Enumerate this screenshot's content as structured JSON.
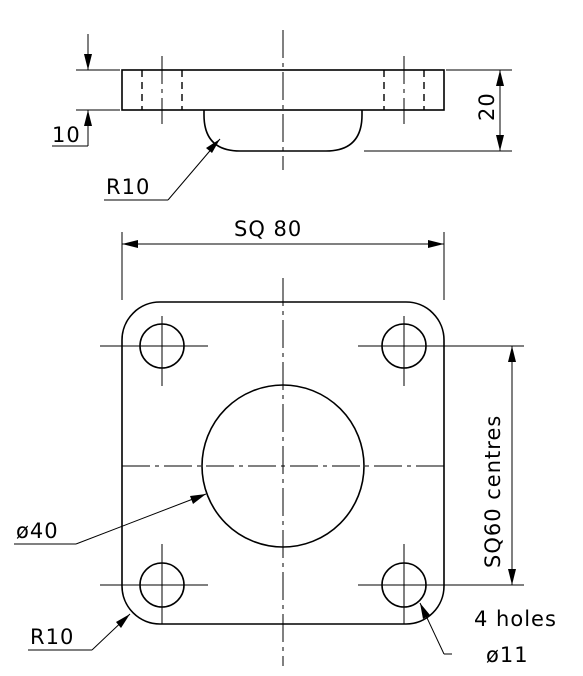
{
  "drawing": {
    "labels": {
      "thickness": "10",
      "height": "20",
      "boss_radius": "R10",
      "square_size": "SQ 80",
      "centres": "SQ60 centres",
      "bore_diameter": "ø40",
      "corner_radius": "R10",
      "holes_count": "4 holes",
      "holes_diameter": "ø11"
    },
    "colors": {
      "line": "#000000",
      "background": "#ffffff"
    }
  }
}
